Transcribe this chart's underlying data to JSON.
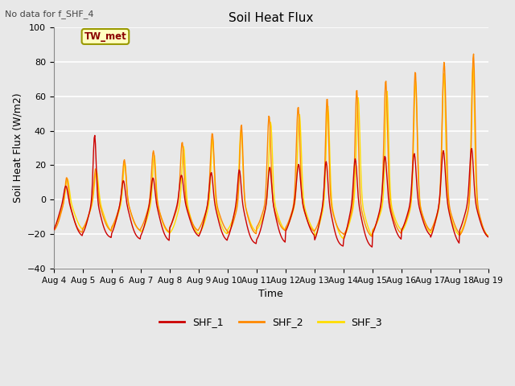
{
  "title": "Soil Heat Flux",
  "subtitle": "No data for f_SHF_4",
  "xlabel": "Time",
  "ylabel": "Soil Heat Flux (W/m2)",
  "ylim": [
    -40,
    100
  ],
  "yticks": [
    -40,
    -20,
    0,
    20,
    40,
    60,
    80,
    100
  ],
  "xlim": [
    0,
    15
  ],
  "xtick_labels": [
    "Aug 4",
    "Aug 5",
    "Aug 6",
    "Aug 7",
    "Aug 8",
    "Aug 9",
    "Aug 10",
    "Aug 11",
    "Aug 12",
    "Aug 13",
    "Aug 14",
    "Aug 15",
    "Aug 16",
    "Aug 17",
    "Aug 18",
    "Aug 19"
  ],
  "colors": {
    "SHF_1": "#cc0000",
    "SHF_2": "#ff8800",
    "SHF_3": "#ffdd00"
  },
  "legend_label": "TW_met",
  "fig_bg_color": "#e8e8e8",
  "plot_bg_color": "#e8e8e8",
  "grid_color": "#ffffff"
}
